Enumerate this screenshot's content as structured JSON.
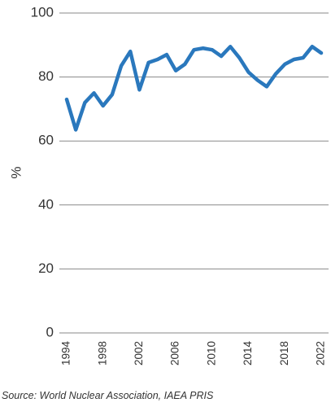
{
  "chart_data": {
    "type": "line",
    "title": "",
    "xlabel": "",
    "ylabel": "%",
    "ylim": [
      0,
      100
    ],
    "yticks": [
      0,
      20,
      40,
      60,
      80,
      100
    ],
    "xlim": [
      1994,
      2022
    ],
    "xticks": [
      1994,
      1998,
      2002,
      2006,
      2010,
      2014,
      2018,
      2022
    ],
    "grid": "horizontal",
    "series": [
      {
        "color": "#2a78bd",
        "x": [
          1994,
          1995,
          1996,
          1997,
          1998,
          1999,
          2000,
          2001,
          2002,
          2003,
          2004,
          2005,
          2006,
          2007,
          2008,
          2009,
          2010,
          2011,
          2012,
          2013,
          2014,
          2015,
          2016,
          2017,
          2018,
          2019,
          2020,
          2021,
          2022
        ],
        "values": [
          73,
          63.5,
          72,
          75,
          71,
          74.5,
          83.5,
          88,
          76,
          84.5,
          85.5,
          87,
          82,
          84,
          88.5,
          89,
          88.5,
          86.5,
          89.5,
          86,
          81.5,
          79,
          77,
          81,
          84,
          85.5,
          86,
          89.5,
          87.5
        ]
      }
    ]
  },
  "source": "Source: World Nuclear Association, IAEA PRIS"
}
